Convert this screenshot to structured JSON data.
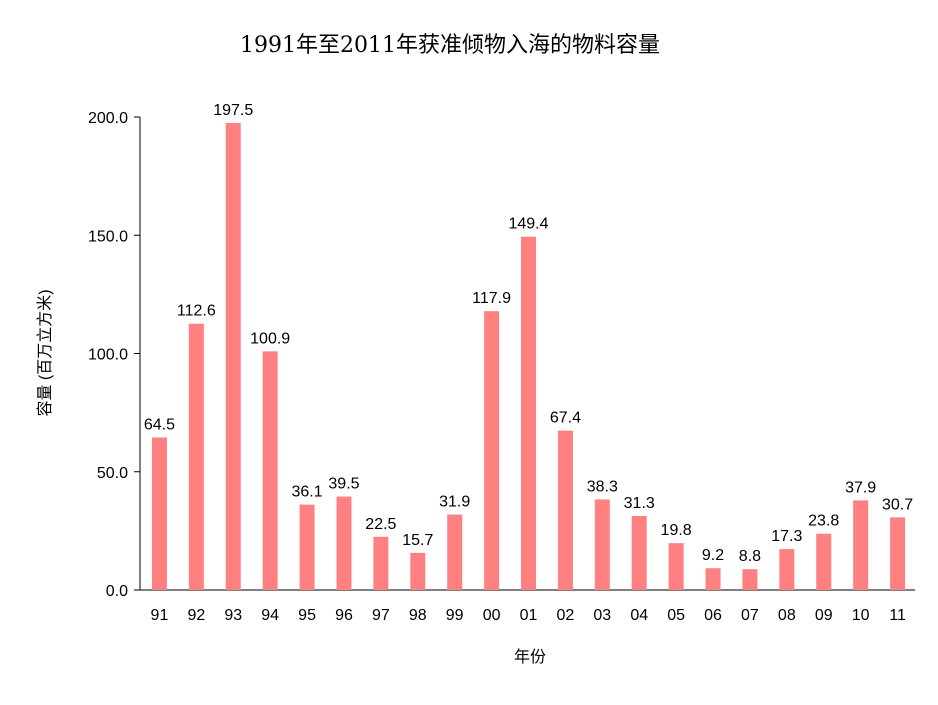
{
  "chart_data": {
    "type": "bar",
    "title": "1991年至2011年获准倾物入海的物料容量",
    "xlabel": "年份",
    "ylabel": "容量 (百万立方米)",
    "categories": [
      "91",
      "92",
      "93",
      "94",
      "95",
      "96",
      "97",
      "98",
      "99",
      "00",
      "01",
      "02",
      "03",
      "04",
      "05",
      "06",
      "07",
      "08",
      "09",
      "10",
      "11"
    ],
    "values": [
      64.5,
      112.6,
      197.5,
      100.9,
      36.1,
      39.5,
      22.5,
      15.7,
      31.9,
      117.9,
      149.4,
      67.4,
      38.3,
      31.3,
      19.8,
      9.2,
      8.8,
      17.3,
      23.8,
      37.9,
      30.7
    ],
    "data_labels": [
      "64.5",
      "112.6",
      "197.5",
      "100.9",
      "36.1",
      "39.5",
      "22.5",
      "15.7",
      "31.9",
      "117.9",
      "149.4",
      "67.4",
      "38.3",
      "31.3",
      "19.8",
      "9.2",
      "8.8",
      "17.3",
      "23.8",
      "37.9",
      "30.7"
    ],
    "yticks": [
      "0.0",
      "50.0",
      "100.0",
      "150.0",
      "200.0"
    ],
    "ylim": [
      0,
      200
    ],
    "grid": false,
    "legend": "none",
    "bar_color": "#FF8080"
  }
}
